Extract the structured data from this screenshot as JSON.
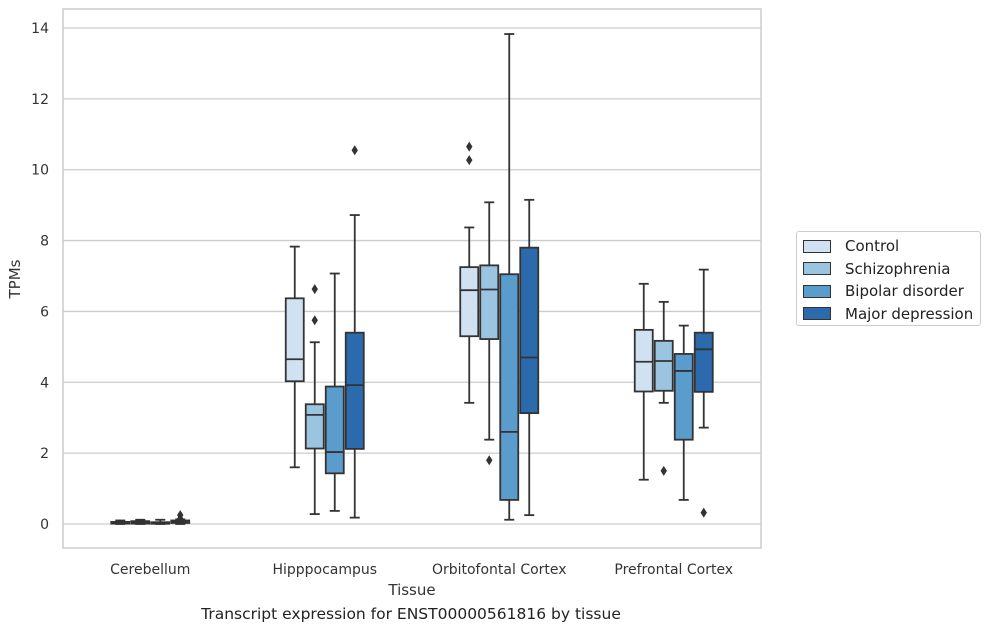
{
  "chart_data": {
    "type": "boxplot",
    "title": "",
    "xlabel": "Tissue",
    "ylabel": "TPMs",
    "ylim": [
      -0.65,
      14.5
    ],
    "yticks": [
      0,
      2,
      4,
      6,
      8,
      10,
      12,
      14
    ],
    "grid": "horizontal",
    "legend_position": "right",
    "categories": [
      "Cerebellum",
      "Hipppocampus",
      "Orbitofontal Cortex",
      "Prefrontal Cortex"
    ],
    "series": [
      {
        "name": "Control",
        "color": "#d0e2f2",
        "boxes": [
          {
            "whisker_low": 0.0,
            "q1": 0.01,
            "median": 0.03,
            "q3": 0.06,
            "whisker_high": 0.1,
            "outliers": []
          },
          {
            "whisker_low": 1.6,
            "q1": 4.03,
            "median": 4.65,
            "q3": 6.37,
            "whisker_high": 7.83,
            "outliers": []
          },
          {
            "whisker_low": 3.42,
            "q1": 5.3,
            "median": 6.6,
            "q3": 7.25,
            "whisker_high": 8.37,
            "outliers": [
              10.27,
              10.65
            ]
          },
          {
            "whisker_low": 1.25,
            "q1": 3.74,
            "median": 4.58,
            "q3": 5.48,
            "whisker_high": 6.78,
            "outliers": []
          }
        ]
      },
      {
        "name": "Schizophrenia",
        "color": "#9ac4df",
        "boxes": [
          {
            "whisker_low": 0.0,
            "q1": 0.01,
            "median": 0.04,
            "q3": 0.08,
            "whisker_high": 0.12,
            "outliers": []
          },
          {
            "whisker_low": 0.28,
            "q1": 2.13,
            "median": 3.08,
            "q3": 3.38,
            "whisker_high": 5.13,
            "outliers": [
              5.75,
              6.63
            ]
          },
          {
            "whisker_low": 2.38,
            "q1": 5.22,
            "median": 6.62,
            "q3": 7.3,
            "whisker_high": 9.08,
            "outliers": [
              1.8
            ]
          },
          {
            "whisker_low": 3.42,
            "q1": 3.76,
            "median": 4.6,
            "q3": 5.17,
            "whisker_high": 6.27,
            "outliers": [
              1.5
            ]
          }
        ]
      },
      {
        "name": "Bipolar disorder",
        "color": "#5a9ccc",
        "boxes": [
          {
            "whisker_low": 0.0,
            "q1": 0.01,
            "median": 0.02,
            "q3": 0.05,
            "whisker_high": 0.12,
            "outliers": []
          },
          {
            "whisker_low": 0.37,
            "q1": 1.43,
            "median": 2.03,
            "q3": 3.88,
            "whisker_high": 7.07,
            "outliers": []
          },
          {
            "whisker_low": 0.12,
            "q1": 0.68,
            "median": 2.6,
            "q3": 7.05,
            "whisker_high": 13.83,
            "outliers": []
          },
          {
            "whisker_low": 0.68,
            "q1": 2.38,
            "median": 4.32,
            "q3": 4.8,
            "whisker_high": 5.6,
            "outliers": []
          }
        ]
      },
      {
        "name": "Major depression",
        "color": "#2a6aad",
        "boxes": [
          {
            "whisker_low": 0.0,
            "q1": 0.03,
            "median": 0.06,
            "q3": 0.1,
            "whisker_high": 0.13,
            "outliers": [
              0.15,
              0.25
            ]
          },
          {
            "whisker_low": 0.18,
            "q1": 2.12,
            "median": 3.92,
            "q3": 5.4,
            "whisker_high": 8.72,
            "outliers": [
              10.55
            ]
          },
          {
            "whisker_low": 0.25,
            "q1": 3.13,
            "median": 4.7,
            "q3": 7.8,
            "whisker_high": 9.15,
            "outliers": []
          },
          {
            "whisker_low": 2.72,
            "q1": 3.73,
            "median": 4.93,
            "q3": 5.4,
            "whisker_high": 7.18,
            "outliers": [
              0.32
            ]
          }
        ]
      }
    ]
  },
  "caption": "Transcript expression for ENST00000561816 by tissue"
}
